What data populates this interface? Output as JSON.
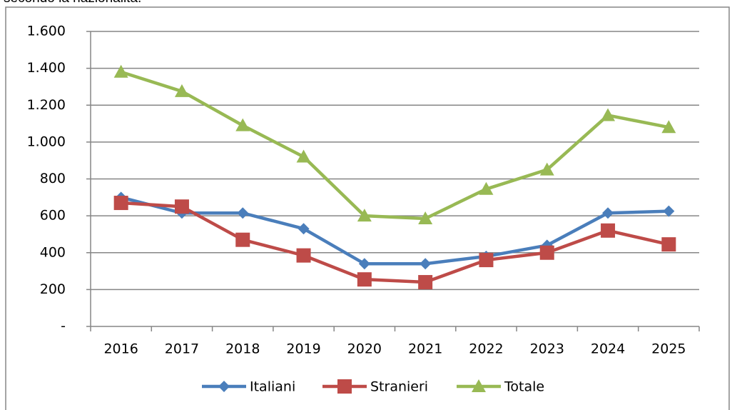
{
  "chart_data": {
    "type": "line",
    "subtitle": "secondo la nazionalità.",
    "categories": [
      "2016",
      "2017",
      "2018",
      "2019",
      "2020",
      "2021",
      "2022",
      "2023",
      "2024",
      "2025"
    ],
    "series": [
      {
        "name": "Italiani",
        "color": "#4a7ebb",
        "marker": "diamond",
        "values": [
          700,
          615,
          615,
          530,
          340,
          340,
          380,
          440,
          615,
          625
        ]
      },
      {
        "name": "Stranieri",
        "color": "#be4b48",
        "marker": "square",
        "values": [
          670,
          650,
          470,
          385,
          255,
          240,
          360,
          400,
          520,
          445
        ]
      },
      {
        "name": "Totale",
        "color": "#98b954",
        "marker": "triangle",
        "values": [
          1380,
          1275,
          1090,
          920,
          600,
          585,
          745,
          850,
          1145,
          1080
        ]
      }
    ],
    "ylim": [
      0,
      1600
    ],
    "yticks": [
      {
        "value": 0,
        "label": "-"
      },
      200,
      400,
      600,
      800,
      {
        "value": 1000,
        "label": "1.000"
      },
      {
        "value": 1200,
        "label": "1.200"
      },
      {
        "value": 1400,
        "label": "1.400"
      },
      {
        "value": 1600,
        "label": "1.600"
      }
    ],
    "grid": true,
    "legend": "bottom"
  }
}
